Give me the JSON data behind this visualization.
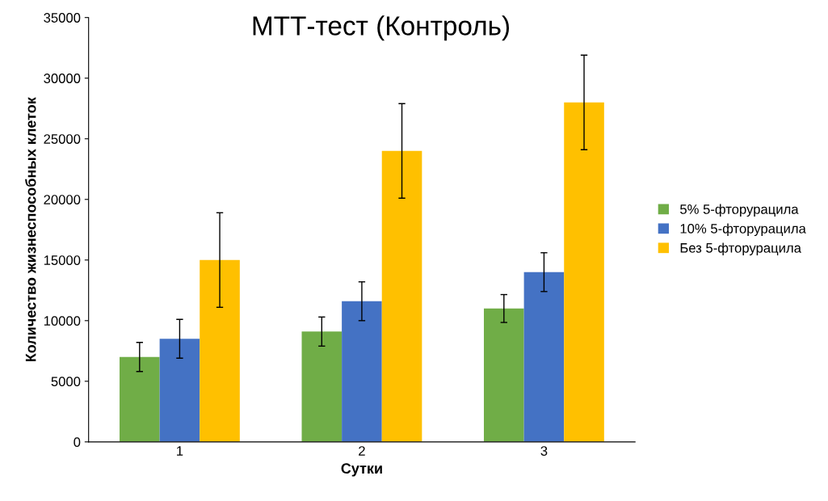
{
  "chart_data": {
    "type": "bar",
    "title": "МТТ-тест (Контроль)",
    "xlabel": "Сутки",
    "ylabel": "Количество жизнеспособных клеток",
    "categories": [
      "1",
      "2",
      "3"
    ],
    "series": [
      {
        "name": "5% 5-фторурацила",
        "color": "#70ad47",
        "values": [
          7000,
          9100,
          11000
        ],
        "errors": [
          1200,
          1200,
          1150
        ]
      },
      {
        "name": "10% 5-фторурацила",
        "color": "#4472c4",
        "values": [
          8500,
          11600,
          14000
        ],
        "errors": [
          1600,
          1600,
          1600
        ]
      },
      {
        "name": "Без 5-фторурацила",
        "color": "#ffc000",
        "values": [
          15000,
          24000,
          28000
        ],
        "errors": [
          3900,
          3900,
          3900
        ]
      }
    ],
    "ylim": [
      0,
      35000
    ],
    "yticks": [
      0,
      5000,
      10000,
      15000,
      20000,
      25000,
      30000,
      35000
    ],
    "grid": false,
    "legend": "right"
  }
}
